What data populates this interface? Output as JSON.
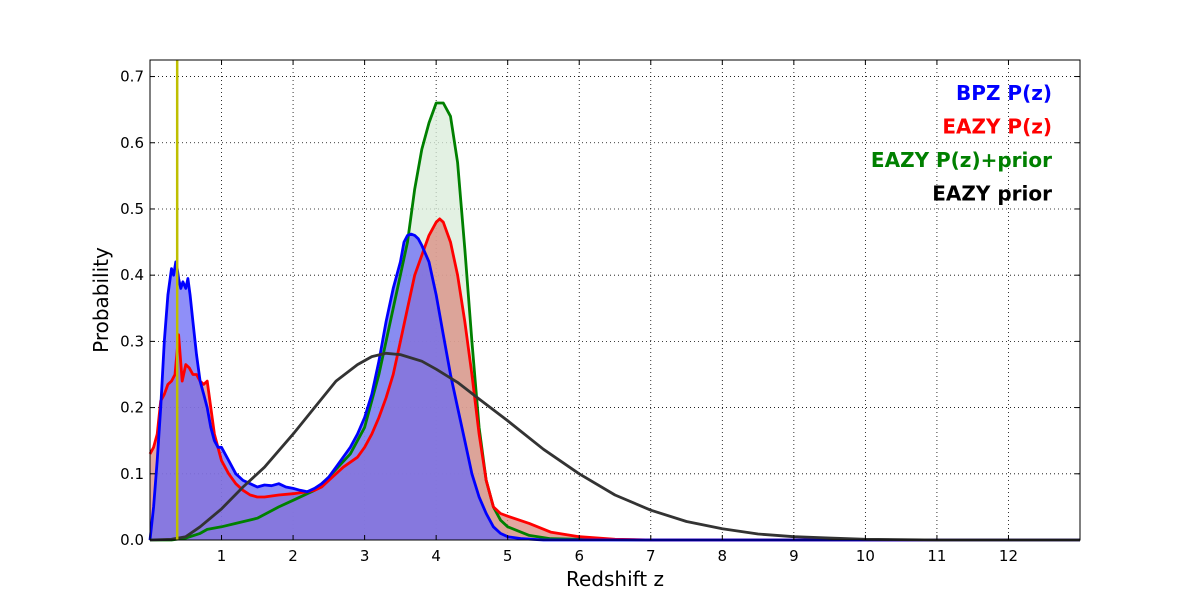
{
  "chart_data": {
    "type": "area",
    "title": "",
    "xlabel": "Redshift z",
    "ylabel": "Probability",
    "xlim": [
      0,
      13
    ],
    "ylim": [
      0,
      0.725
    ],
    "xticks": [
      1,
      2,
      3,
      4,
      5,
      6,
      7,
      8,
      9,
      10,
      11,
      12
    ],
    "yticks": [
      0.0,
      0.1,
      0.2,
      0.3,
      0.4,
      0.5,
      0.6,
      0.7
    ],
    "ytick_labels": [
      "0.0",
      "0.1",
      "0.2",
      "0.3",
      "0.4",
      "0.5",
      "0.6",
      "0.7"
    ],
    "grid": true,
    "legend_position": "top-right",
    "vertical_line": {
      "x": 0.38,
      "color": "#bfbf00"
    },
    "series": [
      {
        "name": "EAZY P(z)+prior",
        "color": "#008000",
        "fill": "#d9ecd9",
        "filled": true,
        "x": [
          0,
          0.3,
          0.5,
          0.7,
          0.8,
          1.0,
          1.2,
          1.5,
          1.8,
          2.0,
          2.3,
          2.5,
          2.8,
          3.0,
          3.2,
          3.4,
          3.6,
          3.7,
          3.8,
          3.9,
          4.0,
          4.1,
          4.2,
          4.3,
          4.4,
          4.5,
          4.6,
          4.7,
          4.8,
          4.9,
          5.0,
          5.3,
          5.6,
          6.0,
          7,
          8,
          13
        ],
        "y": [
          0,
          0.0,
          0.003,
          0.01,
          0.016,
          0.02,
          0.025,
          0.033,
          0.05,
          0.06,
          0.075,
          0.095,
          0.13,
          0.17,
          0.25,
          0.35,
          0.45,
          0.53,
          0.59,
          0.63,
          0.66,
          0.66,
          0.64,
          0.57,
          0.44,
          0.3,
          0.17,
          0.09,
          0.05,
          0.03,
          0.02,
          0.007,
          0.002,
          0.001,
          0.0,
          0.0,
          0.0
        ]
      },
      {
        "name": "EAZY P(z)",
        "color": "#ff0000",
        "fill": "#d98a80",
        "filled": true,
        "x": [
          0,
          0.05,
          0.1,
          0.15,
          0.2,
          0.25,
          0.3,
          0.35,
          0.4,
          0.45,
          0.5,
          0.55,
          0.6,
          0.65,
          0.7,
          0.75,
          0.8,
          0.85,
          0.9,
          1.0,
          1.1,
          1.2,
          1.3,
          1.4,
          1.5,
          1.6,
          1.8,
          2.0,
          2.2,
          2.3,
          2.4,
          2.5,
          2.7,
          2.9,
          3.0,
          3.1,
          3.2,
          3.3,
          3.4,
          3.5,
          3.6,
          3.7,
          3.8,
          3.9,
          4.0,
          4.05,
          4.1,
          4.2,
          4.3,
          4.4,
          4.5,
          4.6,
          4.7,
          4.8,
          4.9,
          5.0,
          5.3,
          5.6,
          6.0,
          6.5,
          7,
          8,
          13
        ],
        "y": [
          0.13,
          0.14,
          0.16,
          0.21,
          0.22,
          0.235,
          0.24,
          0.25,
          0.31,
          0.24,
          0.265,
          0.26,
          0.25,
          0.25,
          0.24,
          0.235,
          0.24,
          0.2,
          0.16,
          0.12,
          0.1,
          0.085,
          0.075,
          0.068,
          0.065,
          0.065,
          0.068,
          0.07,
          0.073,
          0.075,
          0.08,
          0.09,
          0.11,
          0.125,
          0.14,
          0.16,
          0.185,
          0.215,
          0.25,
          0.3,
          0.35,
          0.4,
          0.43,
          0.46,
          0.48,
          0.485,
          0.48,
          0.45,
          0.4,
          0.33,
          0.25,
          0.16,
          0.09,
          0.05,
          0.04,
          0.036,
          0.025,
          0.012,
          0.005,
          0.001,
          0.0,
          0.0,
          0.0
        ]
      },
      {
        "name": "BPZ P(z)",
        "color": "#0000ff",
        "fill": "#6a6af5",
        "filled": true,
        "x": [
          0,
          0.05,
          0.1,
          0.15,
          0.2,
          0.25,
          0.3,
          0.33,
          0.36,
          0.38,
          0.4,
          0.43,
          0.46,
          0.5,
          0.53,
          0.56,
          0.6,
          0.65,
          0.7,
          0.75,
          0.8,
          0.85,
          0.9,
          0.95,
          1.0,
          1.1,
          1.2,
          1.3,
          1.4,
          1.5,
          1.6,
          1.7,
          1.8,
          1.9,
          2.0,
          2.1,
          2.2,
          2.3,
          2.4,
          2.5,
          2.6,
          2.7,
          2.8,
          2.9,
          3.0,
          3.1,
          3.2,
          3.3,
          3.4,
          3.5,
          3.55,
          3.6,
          3.65,
          3.7,
          3.75,
          3.8,
          3.9,
          4.0,
          4.1,
          4.2,
          4.3,
          4.4,
          4.5,
          4.6,
          4.7,
          4.8,
          4.9,
          5.0,
          5.2,
          5.5,
          6.0,
          7,
          13
        ],
        "y": [
          0.0,
          0.05,
          0.12,
          0.2,
          0.3,
          0.37,
          0.41,
          0.4,
          0.42,
          0.41,
          0.395,
          0.38,
          0.39,
          0.38,
          0.395,
          0.37,
          0.33,
          0.28,
          0.24,
          0.22,
          0.2,
          0.17,
          0.15,
          0.14,
          0.14,
          0.12,
          0.1,
          0.09,
          0.085,
          0.08,
          0.083,
          0.082,
          0.085,
          0.08,
          0.078,
          0.075,
          0.073,
          0.078,
          0.085,
          0.095,
          0.11,
          0.125,
          0.14,
          0.16,
          0.185,
          0.22,
          0.27,
          0.33,
          0.38,
          0.42,
          0.45,
          0.46,
          0.462,
          0.46,
          0.455,
          0.445,
          0.42,
          0.37,
          0.31,
          0.25,
          0.2,
          0.15,
          0.1,
          0.065,
          0.04,
          0.02,
          0.01,
          0.005,
          0.002,
          0.0,
          0.0,
          0.0,
          0.0
        ]
      },
      {
        "name": "EAZY prior",
        "color": "#333333",
        "filled": false,
        "x": [
          0,
          0.3,
          0.5,
          0.7,
          1.0,
          1.3,
          1.6,
          2.0,
          2.3,
          2.6,
          2.9,
          3.1,
          3.3,
          3.5,
          3.8,
          4.0,
          4.3,
          4.6,
          5.0,
          5.5,
          6.0,
          6.5,
          7.0,
          7.5,
          8.0,
          8.5,
          9.0,
          9.5,
          10.0,
          11.0,
          12.0,
          13.0
        ],
        "y": [
          0.0,
          0.001,
          0.005,
          0.02,
          0.047,
          0.08,
          0.11,
          0.16,
          0.2,
          0.24,
          0.265,
          0.277,
          0.282,
          0.28,
          0.27,
          0.258,
          0.238,
          0.213,
          0.18,
          0.137,
          0.1,
          0.068,
          0.045,
          0.028,
          0.017,
          0.009,
          0.005,
          0.003,
          0.001,
          0.0,
          0.0,
          0.0
        ]
      }
    ],
    "legend": [
      {
        "label": "BPZ P(z)",
        "color": "#0000ff"
      },
      {
        "label": "EAZY P(z)",
        "color": "#ff0000"
      },
      {
        "label": "EAZY P(z)+prior",
        "color": "#008000"
      },
      {
        "label": "EAZY prior",
        "color": "#000000"
      }
    ]
  }
}
